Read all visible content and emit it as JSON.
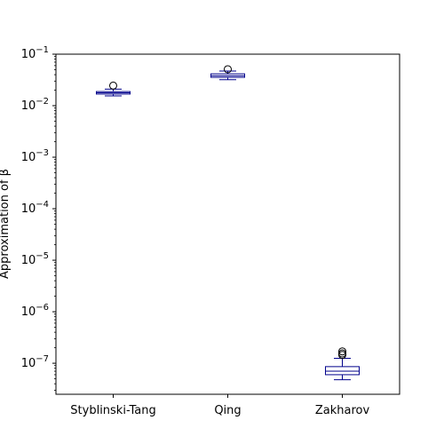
{
  "chart_data": {
    "type": "box",
    "title": "",
    "xlabel": "",
    "ylabel": "Approximation of β",
    "y_scale": "log",
    "ylim": [
      2.5e-08,
      0.1
    ],
    "y_ticks": [
      {
        "value": 1e-07,
        "base": "10",
        "exp": "−7"
      },
      {
        "value": 1e-06,
        "base": "10",
        "exp": "−6"
      },
      {
        "value": 1e-05,
        "base": "10",
        "exp": "−5"
      },
      {
        "value": 0.0001,
        "base": "10",
        "exp": "−4"
      },
      {
        "value": 0.001,
        "base": "10",
        "exp": "−3"
      },
      {
        "value": 0.01,
        "base": "10",
        "exp": "−2"
      },
      {
        "value": 0.1,
        "base": "10",
        "exp": "−1"
      }
    ],
    "categories": [
      "Styblinski-Tang",
      "Qing",
      "Zakharov"
    ],
    "box_color": "#00008b",
    "median_color": "#00008b",
    "boxes": [
      {
        "whisker_low": 0.0155,
        "q1": 0.0168,
        "median": 0.0178,
        "q3": 0.0188,
        "whisker_high": 0.021,
        "outliers": [
          0.0245
        ]
      },
      {
        "whisker_low": 0.032,
        "q1": 0.0355,
        "median": 0.038,
        "q3": 0.0415,
        "whisker_high": 0.047,
        "outliers": [
          0.051
        ]
      },
      {
        "whisker_low": 4.8e-08,
        "q1": 6e-08,
        "median": 7e-08,
        "q3": 8.6e-08,
        "whisker_high": 1.25e-07,
        "outliers": [
          1.45e-07,
          1.55e-07,
          1.7e-07
        ]
      }
    ]
  }
}
